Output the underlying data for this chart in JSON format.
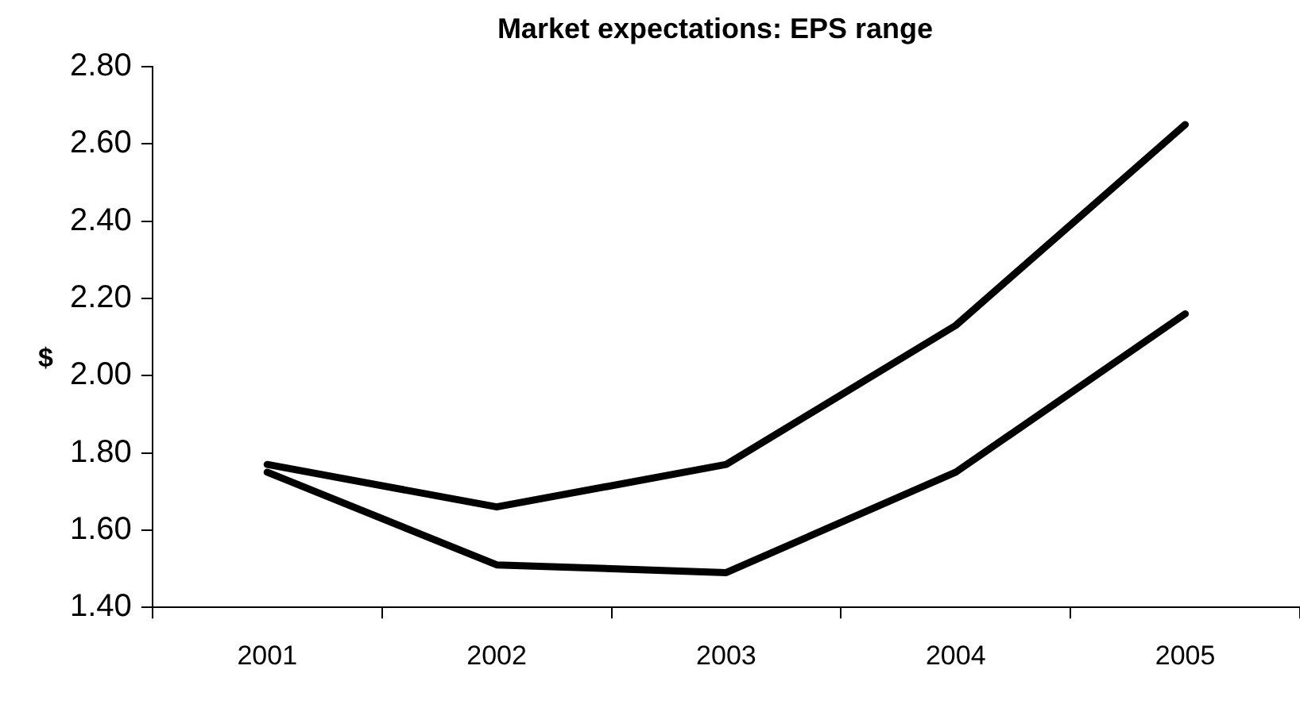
{
  "chart_data": {
    "type": "line",
    "title": "Market expectations: EPS range",
    "ylabel": "$",
    "categories": [
      "2001",
      "2002",
      "2003",
      "2004",
      "2005"
    ],
    "series": [
      {
        "color": "#000000",
        "values": [
          1.77,
          1.66,
          1.77,
          2.13,
          2.65
        ]
      },
      {
        "color": "#000000",
        "values": [
          1.75,
          1.51,
          1.49,
          1.75,
          2.16
        ]
      }
    ],
    "ylim": [
      1.4,
      2.8
    ],
    "yticks": [
      {
        "value": 1.4,
        "label": "1.40"
      },
      {
        "value": 1.6,
        "label": "1.60"
      },
      {
        "value": 1.8,
        "label": "1.80"
      },
      {
        "value": 2.0,
        "label": "2.00"
      },
      {
        "value": 2.2,
        "label": "2.20"
      },
      {
        "value": 2.4,
        "label": "2.40"
      },
      {
        "value": 2.6,
        "label": "2.60"
      },
      {
        "value": 2.8,
        "label": "2.80"
      }
    ],
    "grid": false,
    "legend": false,
    "marker": "none",
    "line_style": "solid"
  }
}
